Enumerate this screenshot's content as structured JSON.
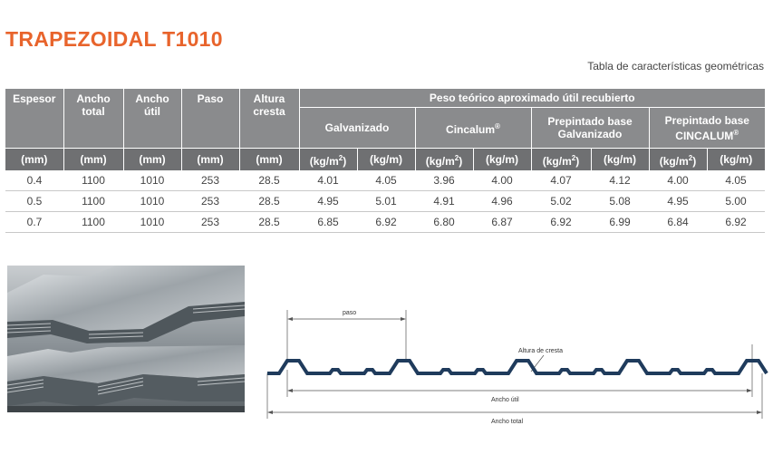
{
  "title": "TRAPEZOIDAL T1010",
  "subtitle": "Tabla de características geométricas",
  "table": {
    "headers": {
      "espesor": "Espesor",
      "ancho_total": [
        "Ancho",
        "total"
      ],
      "ancho_util": [
        "Ancho",
        "útil"
      ],
      "paso": "Paso",
      "altura_cresta": [
        "Altura",
        "cresta"
      ],
      "peso": "Peso teórico aproximado útil recubierto",
      "galvanizado": "Galvanizado",
      "cincalum": "Cincalum",
      "reg_mark": "®",
      "prepintado_galv": [
        "Prepintado base",
        "Galvanizado"
      ],
      "prepintado_cinc": [
        "Prepintado base",
        "CINCALUM"
      ]
    },
    "units": [
      "(mm)",
      "(mm)",
      "(mm)",
      "(mm)",
      "(mm)",
      "(kg/m",
      "(kg/m)",
      "(kg/m",
      "(kg/m)",
      "(kg/m",
      "(kg/m)",
      "(kg/m",
      "(kg/m)"
    ],
    "rows": [
      [
        "0.4",
        "1100",
        "1010",
        "253",
        "28.5",
        "4.01",
        "4.05",
        "3.96",
        "4.00",
        "4.07",
        "4.12",
        "4.00",
        "4.05"
      ],
      [
        "0.5",
        "1100",
        "1010",
        "253",
        "28.5",
        "4.95",
        "5.01",
        "4.91",
        "4.96",
        "5.02",
        "5.08",
        "4.95",
        "5.00"
      ],
      [
        "0.7",
        "1100",
        "1010",
        "253",
        "28.5",
        "6.85",
        "6.92",
        "6.80",
        "6.87",
        "6.92",
        "6.99",
        "6.84",
        "6.92"
      ]
    ]
  },
  "diagram": {
    "paso": "paso",
    "altura": "Altura de cresta",
    "ancho_util": "Ancho útil",
    "ancho_total": "Ancho total",
    "profile_color": "#1f3b5c"
  },
  "colors": {
    "accent": "#e8642c",
    "header": "#8a8b8d",
    "header_dark": "#6f7072"
  }
}
